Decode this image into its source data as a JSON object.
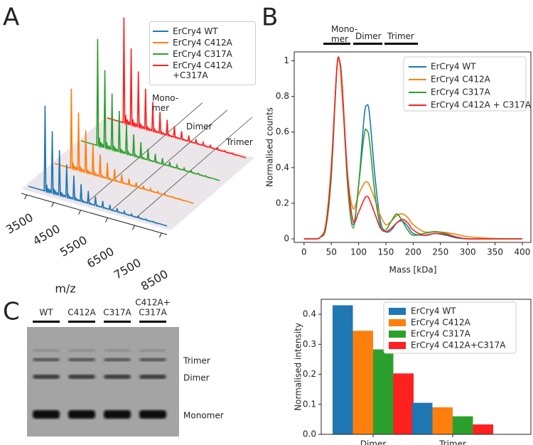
{
  "panel_labels": [
    "A",
    "B",
    "C"
  ],
  "chart_data": [
    {
      "type": "waterfall",
      "series": [
        {
          "name": "ErCry4 WT",
          "color": "#1f77b4"
        },
        {
          "name": "ErCry4 C412A",
          "color": "#ff7f0e"
        },
        {
          "name": "ErCry4 C317A",
          "color": "#2ca02c"
        },
        {
          "name": "ErCry4 C412A +C317A",
          "color": "#ff2020"
        }
      ],
      "xlabel": "m/z",
      "xlim": [
        3300,
        8700
      ],
      "xticks": [
        3500,
        4500,
        5500,
        6500,
        7500,
        8500
      ],
      "regions": [
        "Mono-mer",
        "Dimer",
        "Trimer"
      ]
    },
    {
      "type": "line",
      "xlabel": "Mass [kDa]",
      "ylabel": "Normalised counts",
      "annotations": [
        "Mono-mer",
        "Dimer",
        "Trimer"
      ],
      "xlim": [
        -18,
        417
      ],
      "ylim": [
        -0.02,
        1.05
      ],
      "xticks": [
        0,
        50,
        100,
        150,
        200,
        250,
        300,
        350,
        400
      ],
      "yticks": [
        0,
        0.2,
        0.4,
        0.6,
        0.8,
        1
      ],
      "x": [
        0,
        20,
        30,
        40,
        50,
        60,
        65,
        70,
        80,
        90,
        100,
        110,
        115,
        120,
        130,
        140,
        150,
        160,
        170,
        180,
        190,
        200,
        220,
        240,
        260,
        280,
        300,
        350,
        400
      ],
      "series": [
        {
          "name": "ErCry4 WT",
          "color": "#1f77b4",
          "values": [
            0,
            0,
            0.01,
            0.08,
            0.4,
            0.95,
            1.0,
            0.85,
            0.3,
            0.08,
            0.3,
            0.68,
            0.75,
            0.7,
            0.35,
            0.1,
            0.04,
            0.05,
            0.09,
            0.1,
            0.07,
            0.03,
            0.02,
            0.03,
            0.02,
            0.005,
            0,
            0,
            0
          ]
        },
        {
          "name": "ErCry4 C412A",
          "color": "#ff7f0e",
          "values": [
            0,
            0,
            0.01,
            0.08,
            0.4,
            0.95,
            1.0,
            0.8,
            0.35,
            0.17,
            0.25,
            0.31,
            0.32,
            0.3,
            0.22,
            0.13,
            0.08,
            0.1,
            0.13,
            0.14,
            0.12,
            0.08,
            0.04,
            0.04,
            0.035,
            0.025,
            0.012,
            0.002,
            0
          ]
        },
        {
          "name": "ErCry4 C317A",
          "color": "#2ca02c",
          "values": [
            0,
            0,
            0.01,
            0.06,
            0.35,
            0.95,
            1.0,
            0.85,
            0.3,
            0.06,
            0.3,
            0.58,
            0.61,
            0.55,
            0.25,
            0.07,
            0.05,
            0.1,
            0.14,
            0.1,
            0.05,
            0.02,
            0.03,
            0.04,
            0.03,
            0.01,
            0,
            0,
            0
          ]
        },
        {
          "name": "ErCry4 C412A + C317A",
          "color": "#ff2020",
          "values": [
            0,
            0,
            0.01,
            0.08,
            0.4,
            0.95,
            1.0,
            0.85,
            0.35,
            0.1,
            0.15,
            0.22,
            0.24,
            0.22,
            0.14,
            0.06,
            0.04,
            0.06,
            0.09,
            0.11,
            0.09,
            0.05,
            0.02,
            0.03,
            0.025,
            0.01,
            0,
            0,
            0
          ]
        }
      ]
    },
    {
      "type": "bar",
      "ylabel": "Normalised intensity",
      "categories": [
        "Dimer",
        "Trimer"
      ],
      "ylim": [
        0,
        0.45
      ],
      "yticks": [
        {
          "value": 0,
          "label": "0.0"
        },
        0.1,
        0.2,
        0.3,
        0.4
      ],
      "series": [
        {
          "name": "ErCry4 WT",
          "color": "#1f77b4",
          "values": [
            0.43,
            0.105
          ]
        },
        {
          "name": "ErCry4 C412A",
          "color": "#ff7f0e",
          "values": [
            0.345,
            0.09
          ]
        },
        {
          "name": "ErCry4 C317A",
          "color": "#2ca02c",
          "values": [
            0.283,
            0.06
          ]
        },
        {
          "name": "ErCry4 C412A+C317A",
          "color": "#ff2020",
          "values": [
            0.203,
            0.033
          ]
        }
      ]
    }
  ],
  "gel": {
    "lanes": [
      [
        "WT"
      ],
      [
        "C412A"
      ],
      [
        "C317A"
      ],
      [
        "C412A+",
        "C317A"
      ]
    ],
    "bands": [
      "Trimer",
      "Dimer",
      "Monomer"
    ]
  }
}
